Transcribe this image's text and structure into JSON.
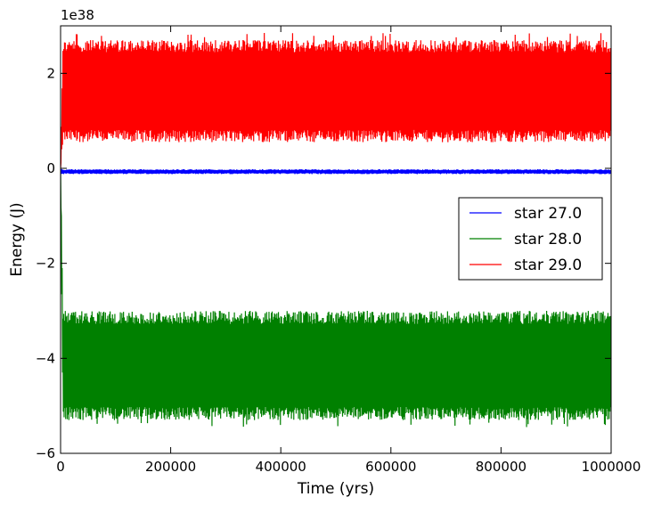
{
  "chart_data": {
    "type": "line",
    "title": "",
    "xlabel": "Time (yrs)",
    "ylabel": "Energy (J)",
    "offset_text": "1e38",
    "xlim": [
      0,
      1000000
    ],
    "ylim": [
      -6,
      3
    ],
    "scale_factor": 1e+38,
    "xticks": [
      0,
      200000,
      400000,
      600000,
      800000,
      1000000
    ],
    "xtick_labels": [
      "0",
      "200000",
      "400000",
      "600000",
      "800000",
      "1000000"
    ],
    "yticks": [
      -6,
      -4,
      -2,
      0,
      2
    ],
    "ytick_labels": [
      "−6",
      "−4",
      "−2",
      "0",
      "2"
    ],
    "grid": false,
    "legend_position": "center-right",
    "series": [
      {
        "name": "star 27.0",
        "color": "#0000ff",
        "description_band": [
          -0.12,
          -0.02
        ],
        "start_value": 0.0,
        "mean_value": -0.07
      },
      {
        "name": "star 28.0",
        "color": "#008000",
        "start_value": 0.0,
        "band_low": -5.3,
        "band_high": -3.0,
        "spike_low": -5.45
      },
      {
        "name": "star 29.0",
        "color": "#ff0000",
        "start_value": 0.0,
        "band_low": 0.55,
        "band_high": 2.7,
        "spike_high": 2.85
      }
    ]
  }
}
